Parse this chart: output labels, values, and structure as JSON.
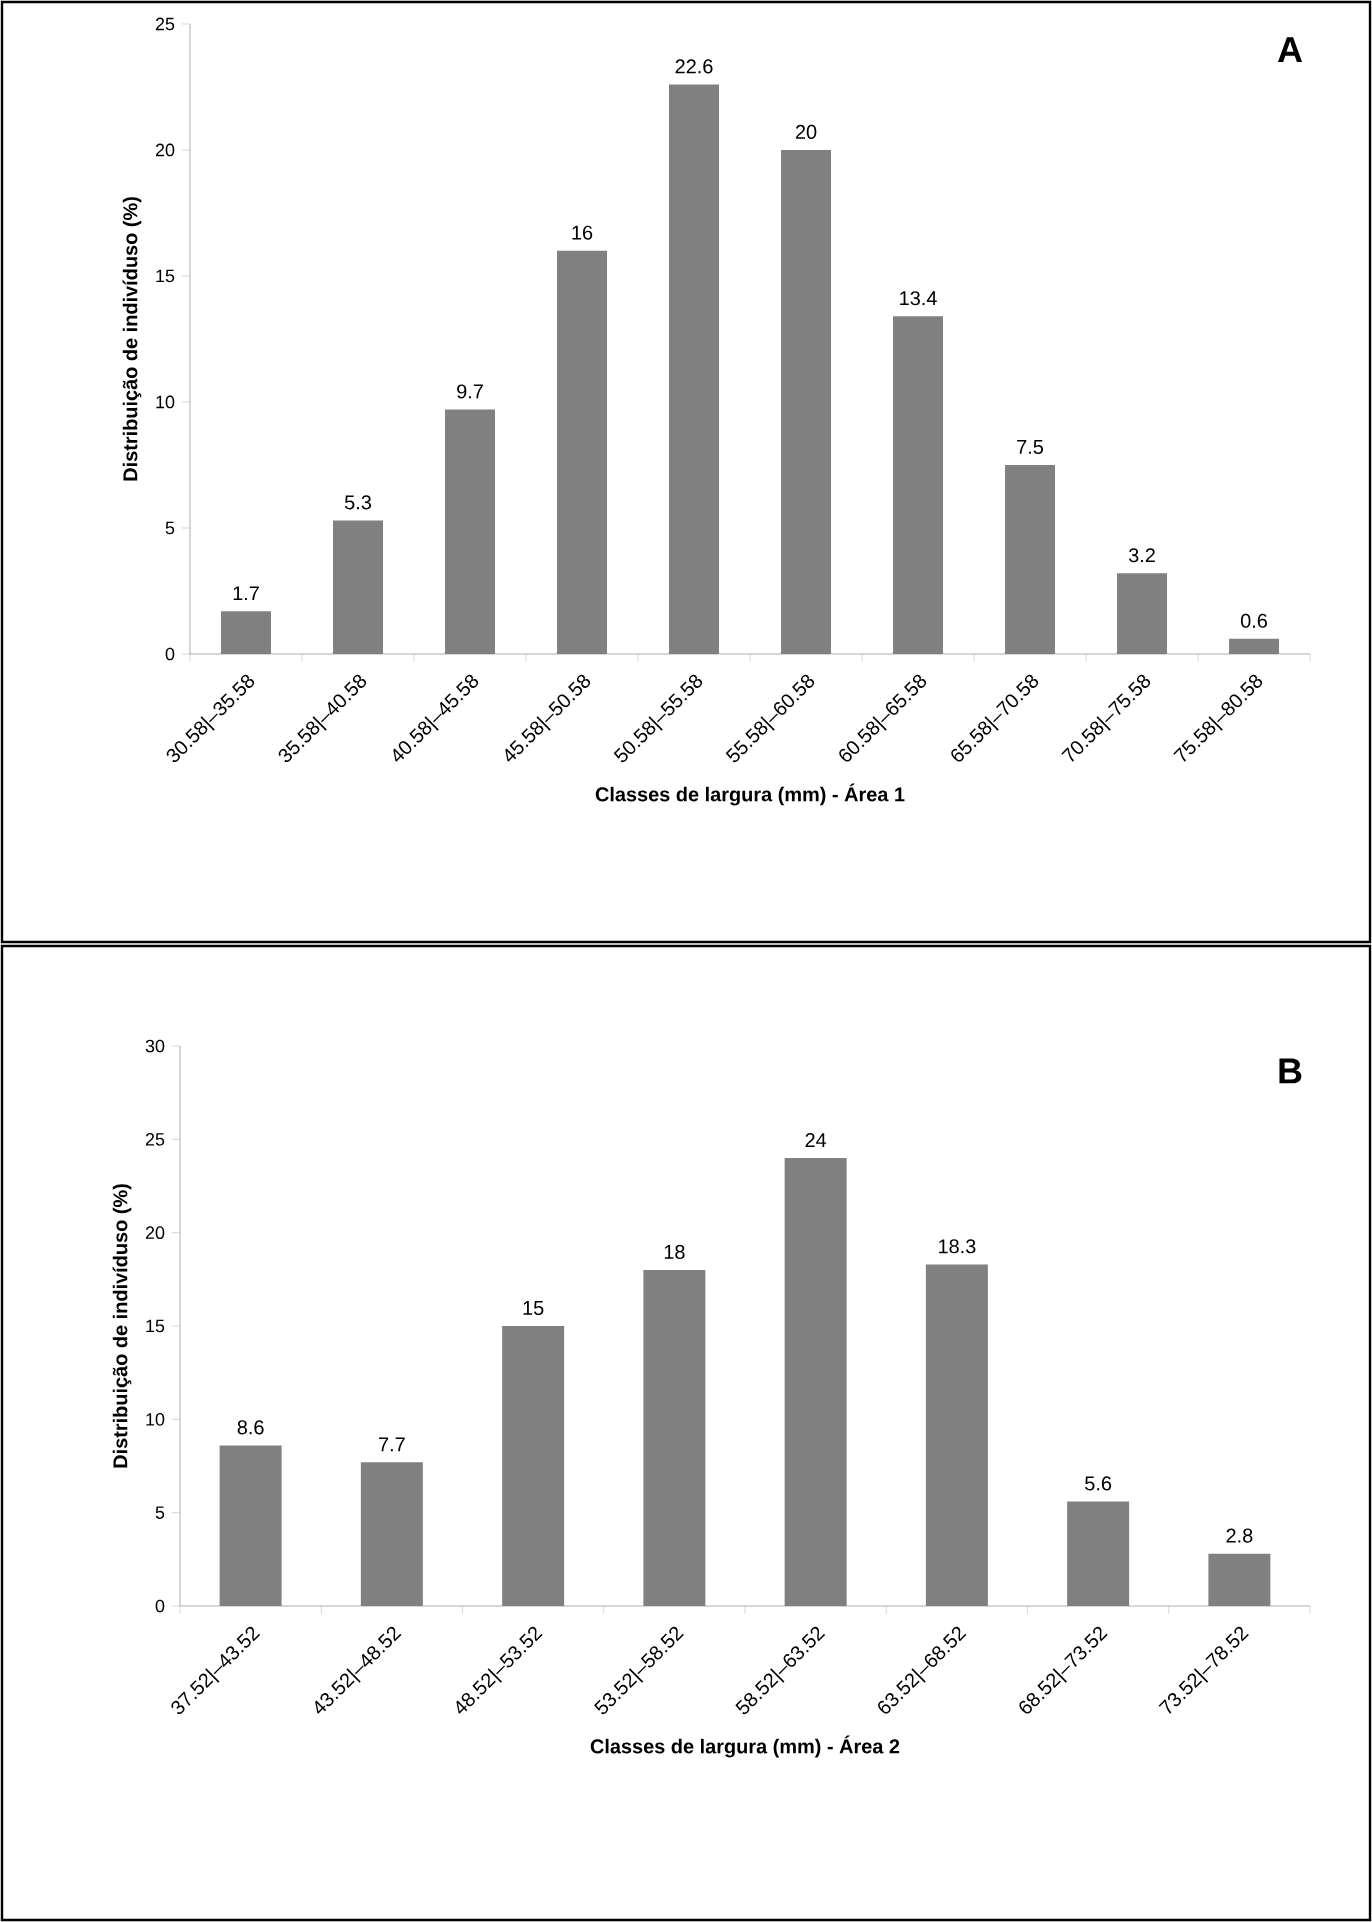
{
  "chart_data": [
    {
      "type": "bar",
      "title": "A",
      "xlabel": "Classes de largura (mm)  - Área 1",
      "ylabel": "Distribuição de indivíduso (%)",
      "categories": [
        "30.58|–35.58",
        "35.58|–40.58",
        "40.58|–45.58",
        "45.58|–50.58",
        "50.58|–55.58",
        "55.58|–60.58",
        "60.58|–65.58",
        "65.58|–70.58",
        "70.58|–75.58",
        "75.58|–80.58"
      ],
      "values": [
        1.7,
        5.3,
        9.7,
        16,
        22.6,
        20,
        13.4,
        7.5,
        3.2,
        0.6
      ],
      "color": "#808080",
      "ylim": [
        0,
        25
      ],
      "yticks": [
        0,
        5,
        10,
        15,
        20,
        25
      ],
      "data_labels": true
    },
    {
      "type": "bar",
      "title": "B",
      "xlabel": "Classes de largura (mm)  - Área 2",
      "ylabel": "Distribuição de indivíduso (%)",
      "categories": [
        "37.52|–43.52",
        "43.52|–48.52",
        "48.52|–53.52",
        "53.52|–58.52",
        "58.52|–63.52",
        "63.52|–68.52",
        "68.52|–73.52",
        "73.52|–78.52"
      ],
      "values": [
        8.6,
        7.7,
        15,
        18,
        24,
        18.3,
        5.6,
        2.8
      ],
      "color": "#808080",
      "ylim": [
        0,
        30
      ],
      "yticks": [
        0,
        5,
        10,
        15,
        20,
        25,
        30
      ],
      "data_labels": true
    }
  ]
}
